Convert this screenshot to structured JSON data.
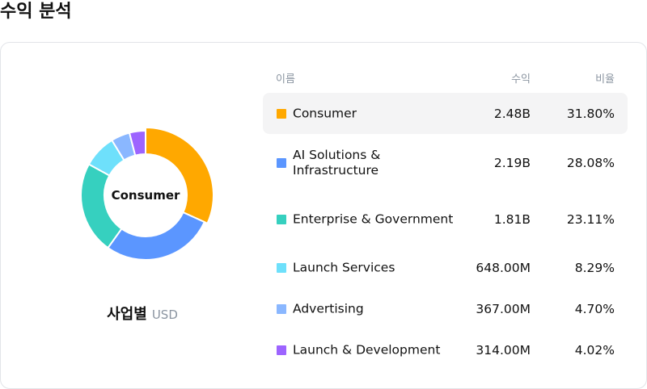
{
  "page": {
    "title": "수익 분석"
  },
  "donut": {
    "center_label": "Consumer",
    "caption": "사업별",
    "unit": "USD"
  },
  "table": {
    "headers": {
      "name": "이름",
      "revenue": "수익",
      "ratio": "비율"
    },
    "rows": [
      {
        "name": "Consumer",
        "revenue": "2.48B",
        "ratio": "31.80%",
        "color": "#ffa800",
        "active": true
      },
      {
        "name": "AI Solutions & Infrastructure",
        "revenue": "2.19B",
        "ratio": "28.08%",
        "color": "#5b96ff",
        "active": false
      },
      {
        "name": "Enterprise & Government",
        "revenue": "1.81B",
        "ratio": "23.11%",
        "color": "#36d0bf",
        "active": false
      },
      {
        "name": "Launch Services",
        "revenue": "648.00M",
        "ratio": "8.29%",
        "color": "#6ee0fb",
        "active": false
      },
      {
        "name": "Advertising",
        "revenue": "367.00M",
        "ratio": "4.70%",
        "color": "#8ab7ff",
        "active": false
      },
      {
        "name": "Launch & Development",
        "revenue": "314.00M",
        "ratio": "4.02%",
        "color": "#9d64ff",
        "active": false
      }
    ]
  },
  "chart_data": {
    "type": "pie",
    "categories": [
      "Consumer",
      "AI Solutions & Infrastructure",
      "Enterprise & Government",
      "Launch Services",
      "Advertising",
      "Launch & Development"
    ],
    "values": [
      31.8,
      28.08,
      23.11,
      8.29,
      4.7,
      4.02
    ],
    "revenue": [
      "2.48B",
      "2.19B",
      "1.81B",
      "648.00M",
      "367.00M",
      "314.00M"
    ],
    "colors": [
      "#ffa800",
      "#5b96ff",
      "#36d0bf",
      "#6ee0fb",
      "#8ab7ff",
      "#9d64ff"
    ],
    "highlighted": "Consumer",
    "title": "",
    "xlabel": "",
    "ylabel": ""
  }
}
